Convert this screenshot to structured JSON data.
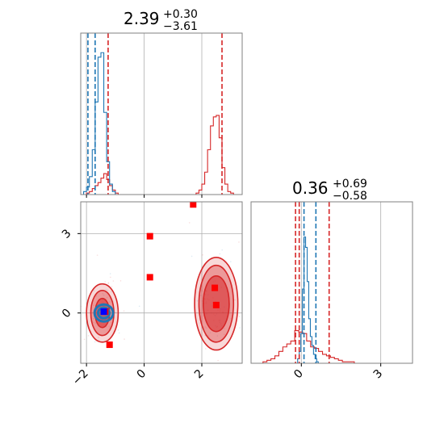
{
  "chart_data": {
    "type": "corner",
    "colors": {
      "blue": "#1f77b4",
      "red": "#d62728",
      "marker": "#ff0000",
      "truth_marker": "#0000ff",
      "grid": "#b0b0b0",
      "frame": "#808080"
    },
    "parameters": [
      {
        "title_value": "2.39",
        "title_plus": "+0.30",
        "title_minus": "−3.61",
        "range": [
          -2.2,
          3.4
        ],
        "ticks": [
          -2,
          0,
          2
        ],
        "tick_labels": [
          "−2",
          "0",
          "2"
        ],
        "blue_quantiles": [
          -1.95,
          -1.7
        ],
        "red_quantiles": [
          -1.25,
          2.7
        ],
        "blue_hist": {
          "start": -2.2,
          "bin_width": 0.1,
          "counts": [
            0.0,
            0.02,
            0.05,
            0.12,
            0.3,
            0.62,
            0.92,
            0.95,
            0.55,
            0.22,
            0.07,
            0.02,
            0.0,
            0.0
          ]
        },
        "red_hist": [
          {
            "start": -2.2,
            "bin_width": 0.1,
            "counts": [
              0.0,
              0.0,
              0.01,
              0.02,
              0.04,
              0.06,
              0.08,
              0.11,
              0.14,
              0.1,
              0.06,
              0.03,
              0.01,
              0.0
            ]
          },
          {
            "start": 1.7,
            "bin_width": 0.1,
            "counts": [
              0.0,
              0.01,
              0.03,
              0.07,
              0.15,
              0.3,
              0.46,
              0.52,
              0.53,
              0.38,
              0.18,
              0.07,
              0.02,
              0.01,
              0.0,
              0.0
            ]
          }
        ]
      },
      {
        "title_value": "0.36",
        "title_plus": "+0.69",
        "title_minus": "−0.58",
        "range": [
          -1.9,
          4.2
        ],
        "ticks": [
          0,
          3
        ],
        "tick_labels": [
          "0",
          "3"
        ],
        "blue_quantiles": [
          0.1,
          0.55
        ],
        "red_quantiles": [
          -0.22,
          -0.08,
          1.05
        ],
        "blue_hist": {
          "start": -0.2,
          "bin_width": 0.06,
          "counts": [
            0.0,
            0.03,
            0.08,
            0.2,
            0.5,
            0.85,
            0.78,
            0.55,
            0.3,
            0.18,
            0.12,
            0.06,
            0.03,
            0.01,
            0.0
          ]
        },
        "red_hist": [
          {
            "start": -1.6,
            "bin_width": 0.15,
            "counts": [
              0.0,
              0.01,
              0.02,
              0.03,
              0.05,
              0.08,
              0.11,
              0.13,
              0.15,
              0.22,
              0.21,
              0.2,
              0.15,
              0.11,
              0.1,
              0.08,
              0.06,
              0.05,
              0.04,
              0.03,
              0.02,
              0.01,
              0.01,
              0.01,
              0.0
            ]
          }
        ]
      }
    ],
    "joint": {
      "red_points": [
        [
          -1.35,
          0.05
        ],
        [
          -1.2,
          -1.2
        ],
        [
          0.2,
          1.35
        ],
        [
          0.2,
          2.9
        ],
        [
          1.7,
          4.1
        ],
        [
          2.45,
          0.95
        ],
        [
          2.5,
          0.3
        ]
      ],
      "truth_points": [
        [
          -1.4,
          0.05
        ]
      ],
      "red_contours": [
        {
          "center": [
            -1.45,
            0.0
          ],
          "levels": [
            [
              0.55,
              1.1
            ],
            [
              0.4,
              0.85
            ],
            [
              0.25,
              0.55
            ]
          ]
        },
        {
          "center": [
            2.5,
            0.35
          ],
          "levels": [
            [
              0.75,
              1.75
            ],
            [
              0.6,
              1.45
            ],
            [
              0.45,
              1.05
            ]
          ]
        }
      ],
      "blue_contours": {
        "center": [
          -1.4,
          0.0
        ],
        "levels": [
          [
            0.32,
            0.32
          ],
          [
            0.2,
            0.2
          ]
        ]
      }
    }
  }
}
